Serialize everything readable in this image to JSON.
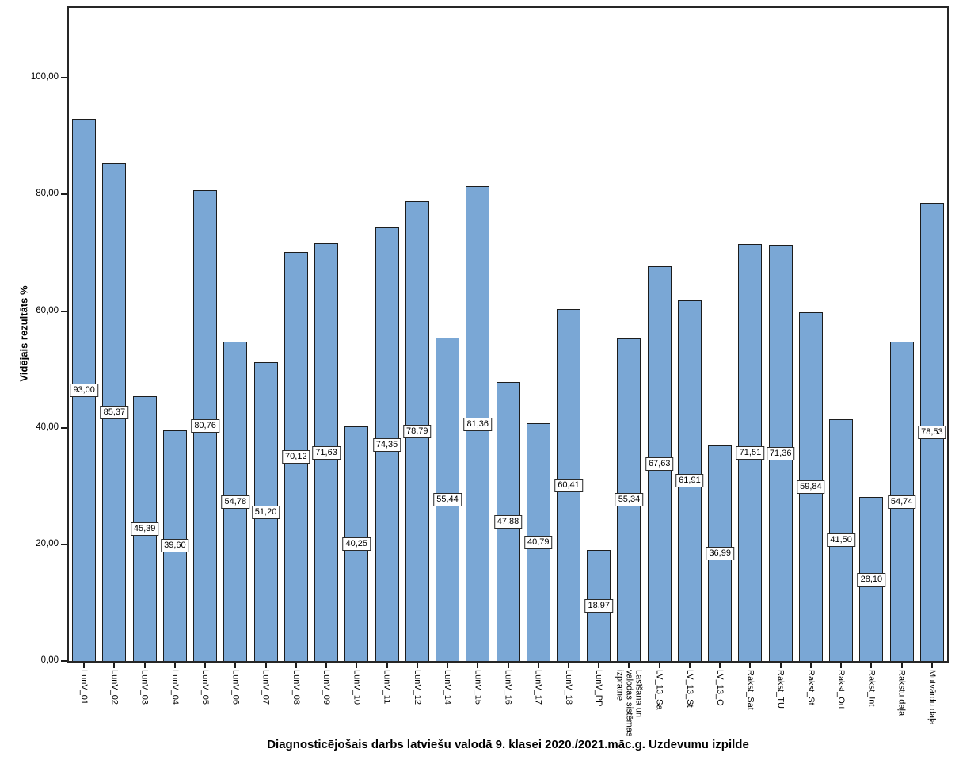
{
  "page": {
    "background": "#ffffff"
  },
  "chart_data": {
    "type": "bar",
    "title": "Diagnosticējošais darbs latviešu valodā 9. klasei 2020./2021.māc.g. Uzdevumu izpilde",
    "xlabel": "",
    "ylabel": "Vidējais rezultāts %",
    "ylim": [
      0,
      112
    ],
    "ytick_interval": 20,
    "ytick_labels": [
      "0,00",
      "20,00",
      "40,00",
      "60,00",
      "80,00",
      "100,00"
    ],
    "grid": false,
    "legend": "none",
    "bar_color": "#7AA7D5",
    "bar_border_color": "#1c1c1c",
    "value_label_box_color": "#ffffff",
    "categories": [
      "LunV_01",
      "LunV_02",
      "LunV_03",
      "LunV_04",
      "LunV_05",
      "LunV_06",
      "LunV_07",
      "LunV_08",
      "LunV_09",
      "LunV_10",
      "LunV_11",
      "LunV_12",
      "LunV_14",
      "LunV_15",
      "LunV_16",
      "LunV_17",
      "LunV_18",
      "LunV_PP",
      "Lasīšana un\nvalodas sistēmas\nizpratne",
      "LV_13_Sa",
      "LV_13_St",
      "LV_13_O",
      "Rakst_Sat",
      "Rakst_TU",
      "Rakst_St",
      "Rakst_Ort",
      "Rakst_Int",
      "Rakstu daļa",
      "Mutvārdu daļa"
    ],
    "values": [
      93.0,
      85.37,
      45.39,
      39.6,
      80.76,
      54.78,
      51.2,
      70.12,
      71.63,
      40.25,
      74.35,
      78.79,
      55.44,
      81.36,
      47.88,
      40.79,
      60.41,
      18.97,
      55.34,
      67.63,
      61.91,
      36.99,
      71.51,
      71.36,
      59.84,
      41.5,
      28.1,
      54.74,
      78.53
    ],
    "value_labels": [
      "93,00",
      "85,37",
      "45,39",
      "39,60",
      "80,76",
      "54,78",
      "51,20",
      "70,12",
      "71,63",
      "40,25",
      "74,35",
      "78,79",
      "55,44",
      "81,36",
      "47,88",
      "40,79",
      "60,41",
      "18,97",
      "55,34",
      "67,63",
      "61,91",
      "36,99",
      "71,51",
      "71,36",
      "59,84",
      "41,50",
      "28,10",
      "54,74",
      "78,53"
    ]
  }
}
